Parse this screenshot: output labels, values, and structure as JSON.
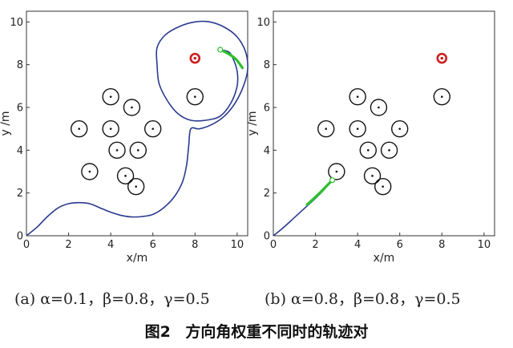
{
  "chart_data": [
    {
      "type": "scatter",
      "panel_label": "(a)",
      "caption": "(a) α=0.1，β=0.8，γ=0.5",
      "xlabel": "x/m",
      "ylabel": "y /m",
      "xlim": [
        0,
        10.5
      ],
      "ylim": [
        0,
        10.5
      ],
      "xticks": [
        0,
        2,
        4,
        6,
        8,
        10
      ],
      "yticks": [
        0,
        2,
        4,
        6,
        8,
        10
      ],
      "xtick_labels": [
        "0",
        "2",
        "4",
        "6",
        "8",
        "10"
      ],
      "ytick_labels": [
        "0",
        "2",
        "4",
        "6",
        "8",
        "10"
      ],
      "grid": false,
      "obstacle_radius": 0.38,
      "obstacles": [
        [
          2.5,
          5.0
        ],
        [
          3.0,
          3.0
        ],
        [
          4.0,
          6.5
        ],
        [
          4.0,
          5.0
        ],
        [
          4.3,
          4.0
        ],
        [
          4.7,
          2.8
        ],
        [
          5.0,
          6.0
        ],
        [
          5.3,
          4.0
        ],
        [
          5.2,
          2.3
        ],
        [
          6.0,
          5.0
        ],
        [
          8.0,
          6.5
        ]
      ],
      "goal": [
        8.0,
        8.3
      ],
      "start": [
        0.0,
        0.0
      ],
      "endpoint": [
        9.2,
        8.7
      ],
      "trajectory": [
        [
          0.0,
          0.0
        ],
        [
          0.5,
          0.4
        ],
        [
          1.0,
          0.9
        ],
        [
          1.5,
          1.3
        ],
        [
          2.0,
          1.5
        ],
        [
          2.5,
          1.55
        ],
        [
          3.0,
          1.5
        ],
        [
          3.5,
          1.3
        ],
        [
          4.0,
          1.1
        ],
        [
          4.5,
          0.95
        ],
        [
          5.0,
          0.88
        ],
        [
          5.5,
          0.9
        ],
        [
          6.0,
          1.0
        ],
        [
          6.5,
          1.3
        ],
        [
          7.0,
          1.8
        ],
        [
          7.4,
          2.5
        ],
        [
          7.6,
          3.3
        ],
        [
          7.7,
          4.2
        ],
        [
          7.8,
          5.0
        ],
        [
          8.2,
          5.0
        ],
        [
          8.8,
          5.2
        ],
        [
          9.4,
          5.6
        ],
        [
          9.9,
          6.2
        ],
        [
          10.3,
          7.0
        ],
        [
          10.5,
          7.8
        ],
        [
          10.4,
          8.6
        ],
        [
          10.0,
          9.3
        ],
        [
          9.4,
          9.75
        ],
        [
          8.7,
          10.0
        ],
        [
          8.0,
          10.0
        ],
        [
          7.3,
          9.8
        ],
        [
          6.6,
          9.4
        ],
        [
          6.2,
          8.8
        ],
        [
          6.2,
          8.0
        ],
        [
          6.3,
          7.1
        ],
        [
          6.7,
          6.3
        ],
        [
          7.2,
          5.7
        ],
        [
          7.8,
          5.4
        ],
        [
          8.5,
          5.4
        ],
        [
          9.2,
          5.6
        ],
        [
          9.7,
          6.2
        ],
        [
          10.0,
          7.0
        ],
        [
          10.0,
          7.7
        ],
        [
          9.8,
          8.3
        ],
        [
          9.6,
          8.6
        ],
        [
          9.2,
          8.7
        ]
      ],
      "green_segment": [
        [
          9.2,
          8.7
        ],
        [
          9.6,
          8.5
        ],
        [
          9.95,
          8.25
        ],
        [
          10.25,
          7.85
        ]
      ]
    },
    {
      "type": "scatter",
      "panel_label": "(b)",
      "caption": "(b) α=0.8，β=0.8，γ=0.5",
      "xlabel": "x/m",
      "ylabel": "y /m",
      "xlim": [
        0,
        10.5
      ],
      "ylim": [
        0,
        10.5
      ],
      "xticks": [
        0,
        2,
        4,
        6,
        8,
        10
      ],
      "yticks": [
        0,
        2,
        4,
        6,
        8,
        10
      ],
      "xtick_labels": [
        "0",
        "2",
        "4",
        "6",
        "8",
        "10"
      ],
      "ytick_labels": [
        "0",
        "2",
        "4",
        "6",
        "8",
        "10"
      ],
      "grid": false,
      "obstacle_radius": 0.38,
      "obstacles": [
        [
          2.5,
          5.0
        ],
        [
          3.0,
          3.0
        ],
        [
          4.0,
          6.5
        ],
        [
          4.0,
          5.0
        ],
        [
          4.5,
          4.0
        ],
        [
          4.7,
          2.8
        ],
        [
          5.0,
          6.0
        ],
        [
          5.5,
          4.0
        ],
        [
          5.2,
          2.3
        ],
        [
          6.0,
          5.0
        ],
        [
          8.0,
          6.5
        ]
      ],
      "goal": [
        8.0,
        8.3
      ],
      "start": [
        0.0,
        0.0
      ],
      "endpoint": [
        2.8,
        2.6
      ],
      "trajectory": [
        [
          0.0,
          0.0
        ],
        [
          0.5,
          0.4
        ],
        [
          1.0,
          0.85
        ],
        [
          1.5,
          1.3
        ],
        [
          2.0,
          1.75
        ],
        [
          2.4,
          2.15
        ],
        [
          2.8,
          2.6
        ]
      ],
      "green_segment": [
        [
          1.6,
          1.45
        ],
        [
          2.2,
          2.0
        ],
        [
          2.8,
          2.6
        ]
      ]
    }
  ],
  "figure_title": {
    "number": "图2",
    "text": "方向角权重不同时的轨迹对"
  },
  "colors": {
    "trajectory": "#2a3a8f",
    "green_segment": "#2cc02c",
    "goal": "#cc2020",
    "obstacle": "#111111",
    "axis": "#333333"
  }
}
